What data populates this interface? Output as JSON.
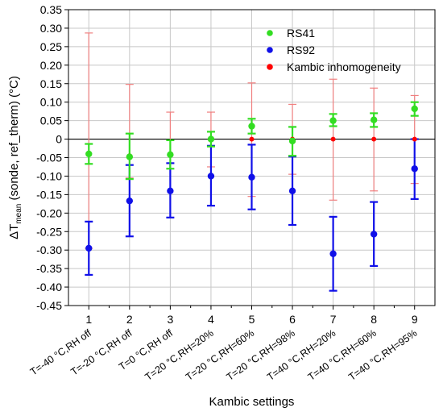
{
  "chart_data": {
    "type": "scatter",
    "x": [
      1,
      2,
      3,
      4,
      5,
      6,
      7,
      8,
      9
    ],
    "categories": [
      "T=-40 °C,RH off",
      "T=-20 °C,RH off",
      "T=0 °C,RH off",
      "T=20 °C,RH=20%",
      "T=20 °C,RH=60%",
      "T=20 °C,RH=98%",
      "T=40 °C,RH=20%",
      "T=40 °C,RH=60%",
      "T=40 °C,RH=95%"
    ],
    "xlabel": "Kambic settings",
    "ylabel_main": "ΔT",
    "ylabel_sub": "mean",
    "ylabel_rest": " (sonde, ref_therm) (°C)",
    "ylim": [
      -0.45,
      0.35
    ],
    "yticks": [
      0.35,
      0.3,
      0.25,
      0.2,
      0.15,
      0.1,
      0.05,
      0,
      -0.05,
      -0.1,
      -0.15,
      -0.2,
      -0.25,
      -0.3,
      -0.35,
      -0.4,
      -0.45
    ],
    "ytick_labels": [
      "0.35",
      "0.30",
      "0.25",
      "0.20",
      "0.15",
      "0.10",
      "0.05",
      "0",
      "-0.05",
      "-0.10",
      "-0.15",
      "-0.20",
      "-0.25",
      "-0.30",
      "-0.35",
      "-0.40",
      "-0.45"
    ],
    "grid": true,
    "zero_line": true,
    "legend_position": "top-right",
    "series": [
      {
        "name": "Kambic inhomogeneity",
        "color": "#ff0000",
        "errorbar_color": "#f08080",
        "values": [
          -0.295,
          -0.045,
          -0.04,
          0.0,
          0.0,
          0.0,
          0.0,
          0.0,
          0.0
        ],
        "err_low": [
          -0.295,
          -0.105,
          -0.065,
          -0.075,
          -0.155,
          -0.095,
          -0.165,
          -0.14,
          -0.12
        ],
        "err_high": [
          0.287,
          0.148,
          0.073,
          0.073,
          0.152,
          0.094,
          0.162,
          0.138,
          0.118
        ]
      },
      {
        "name": "RS92",
        "color": "#1010e8",
        "errorbar_color": "#1010e8",
        "values": [
          -0.295,
          -0.167,
          -0.14,
          -0.1,
          -0.103,
          -0.14,
          -0.31,
          -0.257,
          -0.08
        ],
        "err_low": [
          -0.367,
          -0.263,
          -0.212,
          -0.18,
          -0.19,
          -0.232,
          -0.41,
          -0.343,
          -0.162
        ],
        "err_high": [
          -0.223,
          -0.07,
          -0.065,
          -0.018,
          -0.015,
          -0.047,
          -0.21,
          -0.17,
          0.0
        ]
      },
      {
        "name": "RS41",
        "color": "#33dd22",
        "errorbar_color": "#33dd22",
        "values": [
          -0.04,
          -0.048,
          -0.042,
          0.0,
          0.035,
          -0.005,
          0.05,
          0.052,
          0.082
        ],
        "err_low": [
          -0.067,
          -0.108,
          -0.08,
          -0.02,
          0.015,
          -0.045,
          0.035,
          0.033,
          0.063
        ],
        "err_high": [
          -0.013,
          0.015,
          -0.003,
          0.02,
          0.055,
          0.033,
          0.068,
          0.07,
          0.1
        ]
      }
    ],
    "legend_order": [
      "RS41",
      "RS92",
      "Kambic inhomogeneity"
    ]
  }
}
